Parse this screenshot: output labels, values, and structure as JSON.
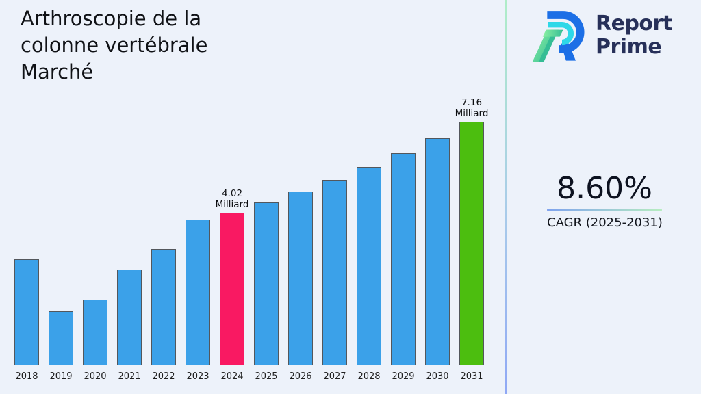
{
  "page": {
    "background": "#EDF2FA",
    "title": "Arthroscopie de la colonne vertébrale Marché",
    "title_lines": [
      "Arthroscopie de la",
      "colonne vertébrale",
      "Marché"
    ]
  },
  "brand": {
    "name_line1": "Report",
    "name_line2": "Prime",
    "text_color": "#273059",
    "logo_colors": {
      "blue": "#1C6FE6",
      "cyan": "#2ED8E8",
      "green_light": "#8CF1A2",
      "teal": "#35BD95"
    }
  },
  "divider": {
    "gradient_top": "#AFEDC8",
    "gradient_mid": "#A9CBEA",
    "gradient_bottom": "#8FA8F5"
  },
  "cagr": {
    "value": "8.60%",
    "label": "CAGR (2025-2031)",
    "underline_gradient_left": "#7FA3EE",
    "underline_gradient_right": "#B7EDC0"
  },
  "chart_data": {
    "type": "bar",
    "title": "Arthroscopie de la colonne vertébrale Marché",
    "xlabel": "",
    "ylabel": "",
    "unit": "Milliard",
    "categories": [
      "2018",
      "2019",
      "2020",
      "2021",
      "2022",
      "2023",
      "2024",
      "2025",
      "2026",
      "2027",
      "2028",
      "2029",
      "2030",
      "2031"
    ],
    "values": [
      2.4,
      0.62,
      1.02,
      2.05,
      2.76,
      3.78,
      4.02,
      4.37,
      4.74,
      5.15,
      5.59,
      6.07,
      6.59,
      7.16
    ],
    "ylim": [
      -1.26,
      7.16
    ],
    "grid": false,
    "legend": null,
    "bar_color_default": "#3BA1E9",
    "bar_border_color": "#53575C",
    "highlights": {
      "2024": "#F91962",
      "2031": "#4CBE0F"
    },
    "annotations": [
      {
        "category": "2024",
        "lines": [
          "4.02",
          "Milliard"
        ]
      },
      {
        "category": "2031",
        "lines": [
          "7.16",
          "Milliard"
        ]
      }
    ],
    "axis_line_color": "#C9CCD4",
    "tick_label_color": "#1F1F1F"
  }
}
